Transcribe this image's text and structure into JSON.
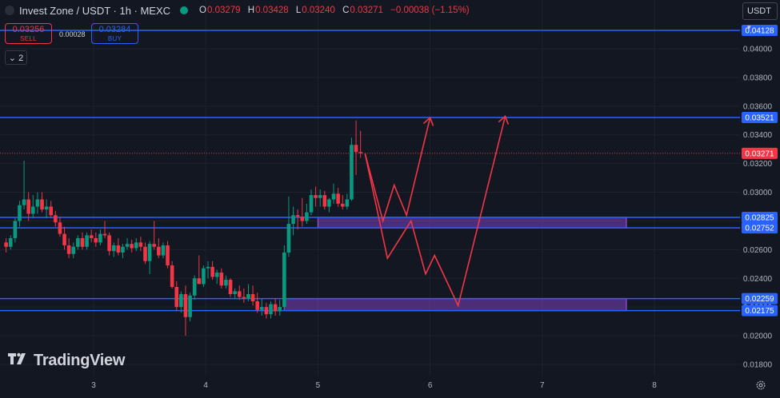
{
  "header": {
    "symbol_title": "Invest Zone / USDT · 1h · MEXC",
    "ohlc": [
      {
        "key": "O",
        "value": "0.03279"
      },
      {
        "key": "H",
        "value": "0.03428"
      },
      {
        "key": "L",
        "value": "0.03240"
      },
      {
        "key": "C",
        "value": "0.03271"
      }
    ],
    "change": "−0.00038 (−1.15%)"
  },
  "trade": {
    "sell_price": "0.03256",
    "sell_label": "SELL",
    "spread": "0.00028",
    "buy_price": "0.03284",
    "buy_label": "BUY"
  },
  "indicator_toggle": "2",
  "currency_button": "USDT",
  "brand": "TradingView",
  "colors": {
    "background": "#131722",
    "up": "#089981",
    "down": "#f23645",
    "level_line": "#2962ff",
    "zone_fill": "#7e3fbf",
    "path": "#f23645"
  },
  "chart_data": {
    "type": "candlestick",
    "price_axis": {
      "range": [
        0.0175,
        0.0425
      ],
      "ticks": [
        "0.01800",
        "0.02000",
        "0.02200",
        "0.02400",
        "0.02600",
        "0.02800",
        "0.03000",
        "0.03200",
        "0.03400",
        "0.03600",
        "0.03800",
        "0.04000"
      ]
    },
    "time_axis": {
      "range": [
        2.2,
        8.9
      ],
      "ticks": [
        "3",
        "4",
        "5",
        "6",
        "7",
        "8"
      ]
    },
    "last_price": "0.03271",
    "levels": [
      {
        "label": "0.04128",
        "value": 0.04128
      },
      {
        "label": "0.03521",
        "value": 0.03521
      },
      {
        "label": "0.02825",
        "value": 0.02825
      },
      {
        "label": "0.02752",
        "value": 0.02752
      },
      {
        "label": "0.02259",
        "value": 0.02259
      },
      {
        "label": "0.02175",
        "value": 0.02175
      }
    ],
    "zones": [
      {
        "from_time": 5.0,
        "to_time": 7.75,
        "low": 0.02752,
        "high": 0.02825
      },
      {
        "from_time": 4.7,
        "to_time": 7.75,
        "low": 0.02175,
        "high": 0.02259
      }
    ],
    "projection_paths": [
      [
        [
          5.42,
          0.0327
        ],
        [
          5.58,
          0.028
        ],
        [
          5.68,
          0.0305
        ],
        [
          5.79,
          0.0284
        ],
        [
          6.0,
          0.0352
        ]
      ],
      [
        [
          5.42,
          0.0327
        ],
        [
          5.62,
          0.0254
        ],
        [
          5.83,
          0.028
        ],
        [
          5.96,
          0.0243
        ],
        [
          6.04,
          0.0256
        ],
        [
          6.25,
          0.0221
        ],
        [
          6.67,
          0.0353
        ]
      ]
    ],
    "candles": [
      [
        2.22,
        0.0265,
        0.0268,
        0.0258,
        0.0262
      ],
      [
        2.26,
        0.0262,
        0.027,
        0.026,
        0.0268
      ],
      [
        2.3,
        0.0268,
        0.0282,
        0.0265,
        0.028
      ],
      [
        2.34,
        0.028,
        0.0294,
        0.0276,
        0.0291
      ],
      [
        2.38,
        0.0291,
        0.0322,
        0.0288,
        0.0295
      ],
      [
        2.42,
        0.0295,
        0.03,
        0.028,
        0.0285
      ],
      [
        2.46,
        0.0285,
        0.0298,
        0.0282,
        0.029
      ],
      [
        2.5,
        0.029,
        0.03,
        0.0285,
        0.0295
      ],
      [
        2.54,
        0.0295,
        0.03,
        0.0286,
        0.0288
      ],
      [
        2.58,
        0.0288,
        0.0295,
        0.0282,
        0.029
      ],
      [
        2.62,
        0.029,
        0.0294,
        0.0282,
        0.0284
      ],
      [
        2.66,
        0.0284,
        0.0287,
        0.0276,
        0.0279
      ],
      [
        2.7,
        0.0279,
        0.0283,
        0.0269,
        0.0271
      ],
      [
        2.74,
        0.0271,
        0.0276,
        0.026,
        0.0263
      ],
      [
        2.78,
        0.0263,
        0.0268,
        0.0254,
        0.0257
      ],
      [
        2.82,
        0.0257,
        0.0265,
        0.0254,
        0.0262
      ],
      [
        2.86,
        0.0262,
        0.027,
        0.026,
        0.0268
      ],
      [
        2.9,
        0.0268,
        0.0272,
        0.026,
        0.0262
      ],
      [
        2.94,
        0.0262,
        0.0272,
        0.026,
        0.027
      ],
      [
        2.98,
        0.027,
        0.0274,
        0.0265,
        0.0268
      ],
      [
        3.02,
        0.0268,
        0.0272,
        0.0262,
        0.0265
      ],
      [
        3.06,
        0.0265,
        0.0274,
        0.0263,
        0.0271
      ],
      [
        3.1,
        0.0271,
        0.028,
        0.0268,
        0.027
      ],
      [
        3.14,
        0.027,
        0.0272,
        0.0256,
        0.0259
      ],
      [
        3.18,
        0.0259,
        0.0265,
        0.0255,
        0.0263
      ],
      [
        3.22,
        0.0263,
        0.0268,
        0.0256,
        0.0258
      ],
      [
        3.26,
        0.0258,
        0.0264,
        0.0254,
        0.0262
      ],
      [
        3.3,
        0.0262,
        0.0268,
        0.026,
        0.0264
      ],
      [
        3.34,
        0.0264,
        0.0267,
        0.0258,
        0.0261
      ],
      [
        3.38,
        0.0261,
        0.0268,
        0.0259,
        0.0265
      ],
      [
        3.42,
        0.0265,
        0.0269,
        0.0259,
        0.0262
      ],
      [
        3.46,
        0.0262,
        0.0265,
        0.025,
        0.0252
      ],
      [
        3.5,
        0.0252,
        0.0266,
        0.0243,
        0.0264
      ],
      [
        3.54,
        0.0264,
        0.028,
        0.026,
        0.0262
      ],
      [
        3.58,
        0.0262,
        0.0268,
        0.0254,
        0.0256
      ],
      [
        3.62,
        0.0256,
        0.0265,
        0.0254,
        0.0263
      ],
      [
        3.66,
        0.0263,
        0.0266,
        0.0247,
        0.0249
      ],
      [
        3.7,
        0.0249,
        0.0252,
        0.0233,
        0.0234
      ],
      [
        3.74,
        0.0234,
        0.0238,
        0.0217,
        0.022
      ],
      [
        3.78,
        0.022,
        0.0231,
        0.0216,
        0.0229
      ],
      [
        3.82,
        0.0229,
        0.0235,
        0.02,
        0.0213
      ],
      [
        3.86,
        0.0213,
        0.023,
        0.021,
        0.0228
      ],
      [
        3.9,
        0.0228,
        0.0242,
        0.0225,
        0.024
      ],
      [
        3.94,
        0.024,
        0.0256,
        0.0237,
        0.0236
      ],
      [
        3.98,
        0.0236,
        0.0249,
        0.0234,
        0.0247
      ],
      [
        4.02,
        0.0247,
        0.0252,
        0.024,
        0.0248
      ],
      [
        4.06,
        0.0248,
        0.0252,
        0.0239,
        0.0241
      ],
      [
        4.1,
        0.0241,
        0.0246,
        0.0236,
        0.0244
      ],
      [
        4.14,
        0.0244,
        0.0247,
        0.0233,
        0.0235
      ],
      [
        4.18,
        0.0235,
        0.0242,
        0.0233,
        0.0239
      ],
      [
        4.22,
        0.0239,
        0.024,
        0.0227,
        0.0229
      ],
      [
        4.26,
        0.0229,
        0.0233,
        0.0226,
        0.0231
      ],
      [
        4.3,
        0.0231,
        0.0235,
        0.0225,
        0.0227
      ],
      [
        4.34,
        0.0227,
        0.0233,
        0.0223,
        0.0226
      ],
      [
        4.38,
        0.0226,
        0.0236,
        0.0224,
        0.0229
      ],
      [
        4.42,
        0.0229,
        0.0235,
        0.0221,
        0.0224
      ],
      [
        4.46,
        0.0224,
        0.023,
        0.0216,
        0.0218
      ],
      [
        4.5,
        0.0218,
        0.0226,
        0.0214,
        0.022
      ],
      [
        4.54,
        0.022,
        0.0223,
        0.0212,
        0.0215
      ],
      [
        4.58,
        0.0215,
        0.0224,
        0.0212,
        0.0222
      ],
      [
        4.62,
        0.0222,
        0.0226,
        0.0214,
        0.0217
      ],
      [
        4.66,
        0.0217,
        0.0225,
        0.0214,
        0.022
      ],
      [
        4.7,
        0.022,
        0.0263,
        0.0219,
        0.0258
      ],
      [
        4.74,
        0.0258,
        0.0297,
        0.0255,
        0.0278
      ],
      [
        4.78,
        0.0278,
        0.029,
        0.027,
        0.0284
      ],
      [
        4.82,
        0.0284,
        0.0288,
        0.0274,
        0.0283
      ],
      [
        4.86,
        0.0283,
        0.0296,
        0.0276,
        0.028
      ],
      [
        4.9,
        0.028,
        0.0292,
        0.0278,
        0.0286
      ],
      [
        4.94,
        0.0286,
        0.0302,
        0.0284,
        0.0298
      ],
      [
        4.98,
        0.0298,
        0.0304,
        0.029,
        0.0296
      ],
      [
        5.02,
        0.0296,
        0.0302,
        0.029,
        0.0298
      ],
      [
        5.06,
        0.0298,
        0.0301,
        0.0288,
        0.029
      ],
      [
        5.1,
        0.029,
        0.0296,
        0.0286,
        0.0295
      ],
      [
        5.14,
        0.0295,
        0.0306,
        0.0292,
        0.0299
      ],
      [
        5.18,
        0.0299,
        0.0303,
        0.029,
        0.0292
      ],
      [
        5.22,
        0.0292,
        0.0298,
        0.0288,
        0.029
      ],
      [
        5.26,
        0.029,
        0.0299,
        0.0288,
        0.0295
      ],
      [
        5.3,
        0.0295,
        0.0338,
        0.0294,
        0.0333
      ],
      [
        5.34,
        0.0333,
        0.035,
        0.0312,
        0.0328
      ],
      [
        5.38,
        0.0328,
        0.03428,
        0.0324,
        0.03271
      ]
    ]
  }
}
